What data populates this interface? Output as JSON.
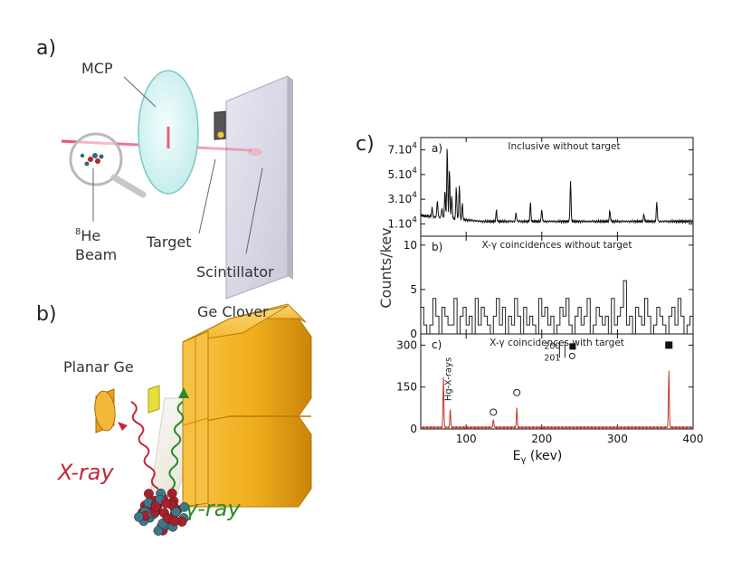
{
  "panels": {
    "a": {
      "label": "a)",
      "labels": {
        "mcp": "MCP",
        "he_sup": "8",
        "he_beam": "He",
        "beam": "Beam",
        "target": "Target",
        "scintillator": "Scintillator"
      }
    },
    "b": {
      "label": "b)",
      "labels": {
        "ge_clover": "Ge Clover",
        "planar_ge": "Planar Ge",
        "xray": "X-ray",
        "gray": "γ-ray"
      }
    },
    "c": {
      "label": "c)"
    }
  },
  "colors": {
    "beam": "#e8466a",
    "clover": "#f0ae1c",
    "xray": "#c0283a",
    "gray": "#2a8a2a",
    "spectrum_c": "#c0392b"
  },
  "chart_data": {
    "type": "line",
    "xlabel_main": "E",
    "xlabel_sub": "γ",
    "xlabel_unit": " (kev)",
    "ylabel": "Counts/kev",
    "xlim": [
      40,
      400
    ],
    "x_ticks": [
      "100",
      "200",
      "300",
      "400"
    ],
    "subplots": [
      {
        "id": "a",
        "tag": "a)",
        "title": "Inclusive without target",
        "ylim": [
          0,
          80000
        ],
        "y_ticks": [
          {
            "mant": "7.10",
            "exp": "4",
            "v": 70000
          },
          {
            "mant": "5.10",
            "exp": "4",
            "v": 50000
          },
          {
            "mant": "3.10",
            "exp": "4",
            "v": 30000
          },
          {
            "mant": "1.10",
            "exp": "4",
            "v": 10000
          }
        ],
        "baseline": 12000,
        "peaks": [
          [
            55,
            19000
          ],
          [
            62,
            26000
          ],
          [
            68,
            20000
          ],
          [
            72,
            34000
          ],
          [
            75,
            70000
          ],
          [
            78,
            52000
          ],
          [
            81,
            30000
          ],
          [
            87,
            38000
          ],
          [
            91,
            40000
          ],
          [
            95,
            25000
          ],
          [
            140,
            21000
          ],
          [
            166,
            19000
          ],
          [
            185,
            27000
          ],
          [
            200,
            22000
          ],
          [
            238,
            45000
          ],
          [
            290,
            21000
          ],
          [
            335,
            18000
          ],
          [
            352,
            28000
          ]
        ]
      },
      {
        "id": "b",
        "tag": "b)",
        "title": "X-γ coincidences without target",
        "ylim": [
          0,
          11
        ],
        "y_ticks": [
          {
            "label": "10",
            "v": 10
          },
          {
            "label": "5",
            "v": 5
          },
          {
            "label": "0",
            "v": 0
          }
        ],
        "counts": [
          3,
          1,
          0,
          1,
          4,
          2,
          0,
          3,
          2,
          1,
          1,
          4,
          0,
          2,
          3,
          1,
          2,
          0,
          4,
          1,
          3,
          2,
          1,
          0,
          2,
          4,
          1,
          3,
          0,
          2,
          1,
          4,
          2,
          0,
          3,
          1,
          2,
          1,
          0,
          4,
          2,
          3,
          1,
          2,
          0,
          1,
          3,
          2,
          4,
          1,
          0,
          2,
          3,
          1,
          2,
          4,
          0,
          1,
          3,
          2,
          1,
          2,
          0,
          4,
          1,
          2,
          3,
          6,
          1,
          2,
          0,
          3,
          2,
          1,
          4,
          2,
          0,
          1,
          3,
          2,
          1,
          0,
          2,
          3,
          1,
          4,
          2,
          0,
          1,
          2
        ]
      },
      {
        "id": "c",
        "tag": "c)",
        "title": "X-γ coincidences with target",
        "ylim": [
          0,
          340
        ],
        "y_ticks": [
          {
            "label": "300",
            "v": 300
          },
          {
            "label": "150",
            "v": 150
          },
          {
            "label": "0",
            "v": 0
          }
        ],
        "peaks": [
          [
            70,
            180
          ],
          [
            79,
            65
          ],
          [
            136,
            30
          ],
          [
            167,
            70
          ],
          [
            368,
            205
          ]
        ],
        "annotations": {
          "hg_xrays": "Hg-X-rays",
          "legend_200": "200",
          "legend_201": "201"
        },
        "markers": [
          {
            "shape": "circle",
            "x": 136,
            "y": 60
          },
          {
            "shape": "circle",
            "x": 167,
            "y": 130
          },
          {
            "shape": "square",
            "x": 368,
            "y": 300
          }
        ]
      }
    ]
  }
}
